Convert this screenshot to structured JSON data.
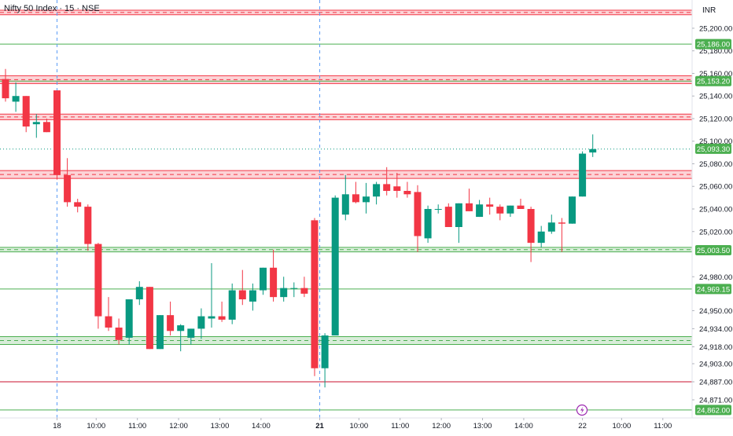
{
  "header": {
    "title": "Nifty 50 Index · 15 · NSE",
    "currency": "INR"
  },
  "chart_data": {
    "type": "candlestick",
    "ylim": [
      24855,
      25225
    ],
    "x_tick_labels": [
      {
        "label": "18",
        "i": 5,
        "bold": false
      },
      {
        "label": "10:00",
        "i": 8.8,
        "bold": false
      },
      {
        "label": "11:00",
        "i": 12.8,
        "bold": false
      },
      {
        "label": "12:00",
        "i": 16.8,
        "bold": false
      },
      {
        "label": "13:00",
        "i": 20.8,
        "bold": false
      },
      {
        "label": "14:00",
        "i": 24.8,
        "bold": false
      },
      {
        "label": "21",
        "i": 30.5,
        "bold": true
      },
      {
        "label": "10:00",
        "i": 34.3,
        "bold": false
      },
      {
        "label": "11:00",
        "i": 38.3,
        "bold": false
      },
      {
        "label": "12:00",
        "i": 42.3,
        "bold": false
      },
      {
        "label": "13:00",
        "i": 46.3,
        "bold": false
      },
      {
        "label": "14:00",
        "i": 50.3,
        "bold": false
      },
      {
        "label": "22",
        "i": 56,
        "bold": false
      },
      {
        "label": "10:00",
        "i": 59.8,
        "bold": false
      },
      {
        "label": "11:00",
        "i": 63.8,
        "bold": false
      }
    ],
    "y_ticks": [
      25200,
      25180,
      25160,
      25140,
      25120,
      25100,
      25080,
      25060,
      25040,
      25020,
      24980,
      24950,
      24934,
      24918,
      24903,
      24887,
      24871
    ],
    "price_labels": [
      {
        "value": 25186.0,
        "text": "25,186.00"
      },
      {
        "value": 25153.2,
        "text": "25,153.20"
      },
      {
        "value": 25093.3,
        "text": "25,093.30"
      },
      {
        "value": 25003.5,
        "text": "25,003.50"
      },
      {
        "value": 24969.15,
        "text": "24,969.15"
      },
      {
        "value": 24862.0,
        "text": "24,862.00"
      }
    ],
    "zones": [
      {
        "from": 25212,
        "to": 25216,
        "color": "#f23645"
      },
      {
        "from": 25151,
        "to": 25158,
        "color": "#f23645"
      },
      {
        "from": 25119,
        "to": 25124,
        "color": "#f23645"
      },
      {
        "from": 25067,
        "to": 25074,
        "color": "#f23645"
      },
      {
        "from": 25002,
        "to": 25006,
        "color": "#4caf50"
      },
      {
        "from": 24920,
        "to": 24927,
        "color": "#4caf50"
      }
    ],
    "lines": [
      {
        "value": 25186,
        "color": "#4caf50"
      },
      {
        "value": 25153.2,
        "color": "#4caf50"
      },
      {
        "value": 24969.15,
        "color": "#4caf50"
      },
      {
        "value": 24887,
        "color": "#c8102e"
      },
      {
        "value": 24862,
        "color": "#4caf50"
      }
    ],
    "session_breaks": [
      5,
      30.5
    ],
    "candles": [
      {
        "o": 25155,
        "h": 25164,
        "l": 25135,
        "c": 25138
      },
      {
        "o": 25135,
        "h": 25152,
        "l": 25126,
        "c": 25140
      },
      {
        "o": 25140,
        "h": 25140,
        "l": 25108,
        "c": 25113
      },
      {
        "o": 25115,
        "h": 25124,
        "l": 25103,
        "c": 25117
      },
      {
        "o": 25117,
        "h": 25120,
        "l": 25108,
        "c": 25108
      },
      {
        "o": 25145,
        "h": 25145,
        "l": 25066,
        "c": 25070
      },
      {
        "o": 25070,
        "h": 25085,
        "l": 25042,
        "c": 25046
      },
      {
        "o": 25046,
        "h": 25049,
        "l": 25037,
        "c": 25042
      },
      {
        "o": 25042,
        "h": 25044,
        "l": 25003,
        "c": 25009
      },
      {
        "o": 25009,
        "h": 25010,
        "l": 24934,
        "c": 24945
      },
      {
        "o": 24945,
        "h": 24962,
        "l": 24932,
        "c": 24935
      },
      {
        "o": 24935,
        "h": 24943,
        "l": 24920,
        "c": 24924
      },
      {
        "o": 24926,
        "h": 24960,
        "l": 24920,
        "c": 24960
      },
      {
        "o": 24960,
        "h": 24976,
        "l": 24955,
        "c": 24971
      },
      {
        "o": 24971,
        "h": 24971,
        "l": 24916,
        "c": 24916
      },
      {
        "o": 24916,
        "h": 24946,
        "l": 24916,
        "c": 24946
      },
      {
        "o": 24946,
        "h": 24958,
        "l": 24928,
        "c": 24932
      },
      {
        "o": 24932,
        "h": 24938,
        "l": 24914,
        "c": 24937
      },
      {
        "o": 24926,
        "h": 24934,
        "l": 24920,
        "c": 24934
      },
      {
        "o": 24934,
        "h": 24952,
        "l": 24925,
        "c": 24945
      },
      {
        "o": 24943,
        "h": 24992,
        "l": 24935,
        "c": 24945
      },
      {
        "o": 24945,
        "h": 24958,
        "l": 24940,
        "c": 24942
      },
      {
        "o": 24942,
        "h": 24974,
        "l": 24938,
        "c": 24968
      },
      {
        "o": 24968,
        "h": 24986,
        "l": 24955,
        "c": 24960
      },
      {
        "o": 24958,
        "h": 24974,
        "l": 24950,
        "c": 24968
      },
      {
        "o": 24968,
        "h": 24988,
        "l": 24964,
        "c": 24988
      },
      {
        "o": 24988,
        "h": 25004,
        "l": 24958,
        "c": 24962
      },
      {
        "o": 24962,
        "h": 24980,
        "l": 24958,
        "c": 24970
      },
      {
        "o": 24970,
        "h": 24975,
        "l": 24962,
        "c": 24970
      },
      {
        "o": 24970,
        "h": 24980,
        "l": 24962,
        "c": 24965
      },
      {
        "o": 25030,
        "h": 25032,
        "l": 24892,
        "c": 24899
      },
      {
        "o": 24899,
        "h": 24930,
        "l": 24882,
        "c": 24928
      },
      {
        "o": 24928,
        "h": 25052,
        "l": 24928,
        "c": 25050
      },
      {
        "o": 25035,
        "h": 25070,
        "l": 25030,
        "c": 25053
      },
      {
        "o": 25053,
        "h": 25064,
        "l": 25045,
        "c": 25046
      },
      {
        "o": 25046,
        "h": 25063,
        "l": 25036,
        "c": 25051
      },
      {
        "o": 25051,
        "h": 25064,
        "l": 25044,
        "c": 25062
      },
      {
        "o": 25062,
        "h": 25077,
        "l": 25052,
        "c": 25056
      },
      {
        "o": 25060,
        "h": 25072,
        "l": 25050,
        "c": 25056
      },
      {
        "o": 25056,
        "h": 25064,
        "l": 25050,
        "c": 25053
      },
      {
        "o": 25055,
        "h": 25061,
        "l": 25002,
        "c": 25016
      },
      {
        "o": 25014,
        "h": 25043,
        "l": 25010,
        "c": 25040
      },
      {
        "o": 25040,
        "h": 25044,
        "l": 25036,
        "c": 25040
      },
      {
        "o": 25042,
        "h": 25045,
        "l": 25024,
        "c": 25024
      },
      {
        "o": 25024,
        "h": 25045,
        "l": 25010,
        "c": 25045
      },
      {
        "o": 25045,
        "h": 25058,
        "l": 25038,
        "c": 25038
      },
      {
        "o": 25033,
        "h": 25048,
        "l": 25033,
        "c": 25044
      },
      {
        "o": 25044,
        "h": 25050,
        "l": 25035,
        "c": 25042
      },
      {
        "o": 25042,
        "h": 25044,
        "l": 25030,
        "c": 25036
      },
      {
        "o": 25036,
        "h": 25043,
        "l": 25033,
        "c": 25043
      },
      {
        "o": 25043,
        "h": 25049,
        "l": 25040,
        "c": 25040
      },
      {
        "o": 25040,
        "h": 25042,
        "l": 24993,
        "c": 25010
      },
      {
        "o": 25010,
        "h": 25025,
        "l": 25006,
        "c": 25020
      },
      {
        "o": 25020,
        "h": 25035,
        "l": 25018,
        "c": 25028
      },
      {
        "o": 25028,
        "h": 25032,
        "l": 25002,
        "c": 25027
      },
      {
        "o": 25027,
        "h": 25051,
        "l": 25027,
        "c": 25051
      },
      {
        "o": 25051,
        "h": 25091,
        "l": 25051,
        "c": 25089
      },
      {
        "o": 25090,
        "h": 25106,
        "l": 25086,
        "c": 25093
      }
    ],
    "colors": {
      "up": "#089981",
      "down": "#f23645",
      "label_green": "#4caf50"
    }
  }
}
